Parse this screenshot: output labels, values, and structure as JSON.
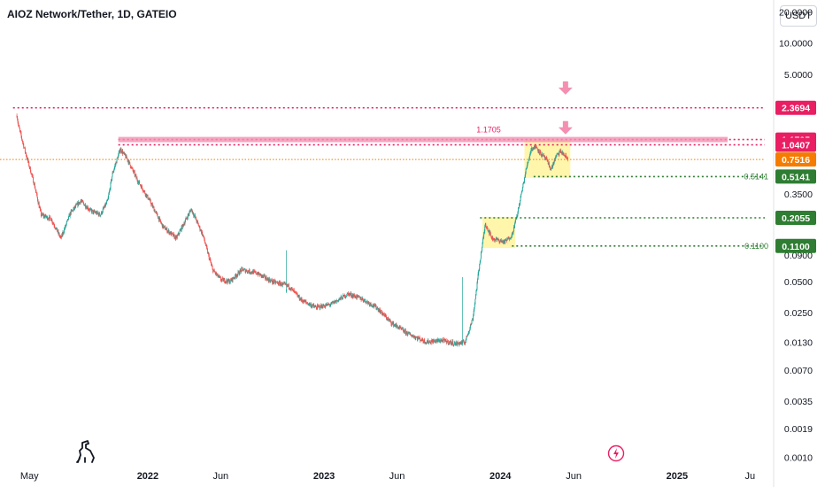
{
  "header": {
    "title": "AIOZ Network/Tether, 1D, GATEIO",
    "currency": "USDT"
  },
  "icons": {
    "logo": "tradingview-dino-logo-icon",
    "flash": "lightning-bolt-icon",
    "arrows": "down-arrow-icon"
  },
  "colors": {
    "up": "#26a69a",
    "down": "#ef5350",
    "resistance": "#e91e63",
    "current": "#f57c00",
    "support": "#2e7d32",
    "zone": "#fff59d"
  },
  "chart_data": {
    "type": "candlestick",
    "title": "AIOZ Network/Tether, 1D, GATEIO",
    "yscale": "log",
    "ylim": [
      0.0008,
      26
    ],
    "xlim": [
      "2021-03-01",
      "2025-07-20"
    ],
    "x_ticks": [
      {
        "date": "2021-05-01",
        "label": "May"
      },
      {
        "date": "2022-01-01",
        "label": "2022"
      },
      {
        "date": "2022-06-01",
        "label": "Jun"
      },
      {
        "date": "2023-01-01",
        "label": "2023"
      },
      {
        "date": "2023-06-01",
        "label": "Jun"
      },
      {
        "date": "2024-01-01",
        "label": "2024"
      },
      {
        "date": "2024-06-01",
        "label": "Jun"
      },
      {
        "date": "2025-01-01",
        "label": "2025"
      },
      {
        "date": "2025-06-01",
        "label": "Ju"
      }
    ],
    "y_ticks": [
      {
        "value": 20.0,
        "label": "20.0000"
      },
      {
        "value": 10.0,
        "label": "10.0000"
      },
      {
        "value": 5.0,
        "label": "5.0000"
      },
      {
        "value": 0.35,
        "label": "0.3500"
      },
      {
        "value": 0.09,
        "label": "0.0900"
      },
      {
        "value": 0.05,
        "label": "0.0500"
      },
      {
        "value": 0.025,
        "label": "0.0250"
      },
      {
        "value": 0.013,
        "label": "0.0130"
      },
      {
        "value": 0.007,
        "label": "0.0070"
      },
      {
        "value": 0.0035,
        "label": "0.0035"
      },
      {
        "value": 0.0019,
        "label": "0.0019"
      },
      {
        "value": 0.001,
        "label": "0.0010"
      }
    ],
    "price_path": [
      [
        "2021-04-05",
        2.0
      ],
      [
        "2021-04-08",
        1.6
      ],
      [
        "2021-04-22",
        0.9
      ],
      [
        "2021-05-10",
        0.45
      ],
      [
        "2021-05-25",
        0.22
      ],
      [
        "2021-06-15",
        0.2
      ],
      [
        "2021-07-05",
        0.13
      ],
      [
        "2021-07-25",
        0.23
      ],
      [
        "2021-08-15",
        0.3
      ],
      [
        "2021-09-05",
        0.24
      ],
      [
        "2021-09-25",
        0.22
      ],
      [
        "2021-10-10",
        0.3
      ],
      [
        "2021-10-20",
        0.55
      ],
      [
        "2021-11-05",
        0.95
      ],
      [
        "2021-11-20",
        0.75
      ],
      [
        "2021-12-10",
        0.48
      ],
      [
        "2022-01-05",
        0.3
      ],
      [
        "2022-02-01",
        0.17
      ],
      [
        "2022-03-01",
        0.13
      ],
      [
        "2022-04-01",
        0.25
      ],
      [
        "2022-04-25",
        0.14
      ],
      [
        "2022-05-15",
        0.065
      ],
      [
        "2022-06-01",
        0.052
      ],
      [
        "2022-06-20",
        0.05
      ],
      [
        "2022-07-15",
        0.065
      ],
      [
        "2022-08-15",
        0.06
      ],
      [
        "2022-09-15",
        0.05
      ],
      [
        "2022-10-20",
        0.045
      ],
      [
        "2022-11-15",
        0.033
      ],
      [
        "2022-12-15",
        0.028
      ],
      [
        "2023-01-15",
        0.03
      ],
      [
        "2023-02-20",
        0.038
      ],
      [
        "2023-03-20",
        0.034
      ],
      [
        "2023-04-20",
        0.028
      ],
      [
        "2023-05-20",
        0.02
      ],
      [
        "2023-06-20",
        0.016
      ],
      [
        "2023-08-01",
        0.013
      ],
      [
        "2023-09-01",
        0.0135
      ],
      [
        "2023-10-01",
        0.0125
      ],
      [
        "2023-10-20",
        0.013
      ],
      [
        "2023-11-05",
        0.022
      ],
      [
        "2023-11-20",
        0.08
      ],
      [
        "2023-12-01",
        0.18
      ],
      [
        "2023-12-15",
        0.13
      ],
      [
        "2024-01-10",
        0.12
      ],
      [
        "2024-01-25",
        0.14
      ],
      [
        "2024-02-05",
        0.22
      ],
      [
        "2024-02-15",
        0.38
      ],
      [
        "2024-02-25",
        0.65
      ],
      [
        "2024-03-05",
        0.95
      ],
      [
        "2024-03-15",
        1.0
      ],
      [
        "2024-03-25",
        0.85
      ],
      [
        "2024-04-05",
        0.75
      ],
      [
        "2024-04-15",
        0.6
      ],
      [
        "2024-04-25",
        0.8
      ],
      [
        "2024-05-05",
        0.9
      ],
      [
        "2024-05-15",
        0.8
      ],
      [
        "2024-05-20",
        0.7516
      ]
    ],
    "spike_candles": [
      {
        "date": "2022-10-15",
        "high": 0.1,
        "close": 0.042
      },
      {
        "date": "2023-10-15",
        "high": 0.055,
        "close": 0.013
      }
    ],
    "levels": [
      {
        "value": 2.3694,
        "label": "2.3694",
        "role": "resistance",
        "start": "2021-03-28"
      },
      {
        "value": 1.1705,
        "label": "1.1705",
        "role": "resistance",
        "start": "2021-11-01",
        "line_label": "1.1705"
      },
      {
        "value": 1.0407,
        "label": "1.0407",
        "role": "resistance",
        "start": "2021-11-01"
      },
      {
        "value": 0.7516,
        "label": "0.7516",
        "role": "current",
        "start": "2021-03-01"
      },
      {
        "value": 0.5141,
        "label": "0.5141",
        "role": "support",
        "start": "2024-03-10",
        "line_label": "0.5141"
      },
      {
        "value": 0.2055,
        "label": "0.2055",
        "role": "support",
        "start": "2023-11-20"
      },
      {
        "value": 0.11,
        "label": "0.1100",
        "role": "support",
        "start": "2024-01-25",
        "line_label": "0.1100"
      }
    ],
    "zones": [
      {
        "x0": "2023-11-25",
        "x1": "2024-02-01",
        "y0": 0.105,
        "y1": 0.21
      },
      {
        "x0": "2024-02-20",
        "x1": "2024-05-25",
        "y0": 0.5,
        "y1": 1.15
      }
    ],
    "arrows": [
      {
        "date": "2024-05-15",
        "value": 3.5
      },
      {
        "date": "2024-05-15",
        "value": 1.45
      }
    ]
  }
}
